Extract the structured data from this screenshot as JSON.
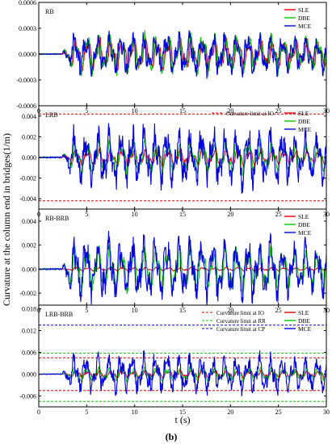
{
  "figure": {
    "caption": "(b)",
    "xlabel": "t (s)",
    "ylabel": "Curvature at the column end in bridges(1/m)"
  },
  "chart_data": [
    {
      "type": "line",
      "panel_label": "RB",
      "x_range": [
        0,
        30
      ],
      "xticks": [
        0,
        5,
        10,
        15,
        20,
        25,
        30
      ],
      "ylim": [
        -0.0006,
        0.0006
      ],
      "yticks": [
        -0.0006,
        -0.0003,
        0.0,
        0.0003,
        0.0006
      ],
      "ytick_labels": [
        "-0.0006",
        "-0.0003",
        "0.0000",
        "0.0003",
        "0.0006"
      ],
      "legend": "top-right",
      "series": [
        {
          "name": "SLE",
          "color": "#e00000",
          "amplitude": 0.00018
        },
        {
          "name": "DBE",
          "color": "#00c800",
          "amplitude": 0.00022
        },
        {
          "name": "MCE",
          "color": "#0000e0",
          "amplitude": 0.0002
        }
      ],
      "limits": []
    },
    {
      "type": "line",
      "panel_label": "LRB",
      "x_range": [
        0,
        30
      ],
      "xticks": [
        0,
        5,
        10,
        15,
        20,
        25,
        30
      ],
      "ylim": [
        -0.005,
        0.005
      ],
      "yticks": [
        -0.004,
        -0.002,
        0.0,
        0.002,
        0.004
      ],
      "ytick_labels": [
        "-0.004",
        "-0.002",
        "0.000",
        "0.002",
        "0.004"
      ],
      "legend": "top-right",
      "series": [
        {
          "name": "SLE",
          "color": "#e00000",
          "amplitude": 0.0008
        },
        {
          "name": "DBE",
          "color": "#00c800",
          "amplitude": 0.0015
        },
        {
          "name": "MCE",
          "color": "#0000e0",
          "amplitude": 0.0025
        }
      ],
      "limits": [
        {
          "name": "Curvature limit at IO",
          "color": "#e00000",
          "values": [
            0.0042,
            -0.0042
          ]
        }
      ]
    },
    {
      "type": "line",
      "panel_label": "RB-BRB",
      "x_range": [
        0,
        30
      ],
      "xticks": [
        0,
        5,
        10,
        15,
        20,
        25,
        30
      ],
      "ylim": [
        -0.003,
        0.005
      ],
      "yticks": [
        -0.002,
        0.0,
        0.002,
        0.004
      ],
      "ytick_labels": [
        "-0.002",
        "0.000",
        "0.002",
        "0.004"
      ],
      "legend": "top-right",
      "series": [
        {
          "name": "SLE",
          "color": "#e00000",
          "amplitude": 0.00015
        },
        {
          "name": "DBE",
          "color": "#00c800",
          "amplitude": 0.0018
        },
        {
          "name": "MCE",
          "color": "#0000e0",
          "amplitude": 0.0022
        }
      ],
      "limits": []
    },
    {
      "type": "line",
      "panel_label": "LRB-BRB",
      "x_range": [
        0,
        30
      ],
      "xticks": [
        0,
        5,
        10,
        15,
        20,
        25,
        30
      ],
      "ylim": [
        -0.009,
        0.019
      ],
      "yticks": [
        -0.006,
        0.0,
        0.006,
        0.012,
        0.018
      ],
      "ytick_labels": [
        "-0.006",
        "0.000",
        "0.006",
        "0.012",
        "0.018"
      ],
      "legend": "top-right",
      "series": [
        {
          "name": "SLE",
          "color": "#e00000",
          "amplitude": 0.001
        },
        {
          "name": "DBE",
          "color": "#00c800",
          "amplitude": 0.0018
        },
        {
          "name": "MCE",
          "color": "#0000e0",
          "amplitude": 0.0045
        }
      ],
      "limits": [
        {
          "name": "Curvature limit at IO",
          "color": "#e00000",
          "values": [
            0.0045,
            -0.0045
          ]
        },
        {
          "name": "Curvature limit at RR",
          "color": "#00c800",
          "values": [
            0.0058,
            -0.0075
          ]
        },
        {
          "name": "Curvature limit at CP",
          "color": "#0000e0",
          "values": [
            0.0135
          ]
        }
      ]
    }
  ]
}
